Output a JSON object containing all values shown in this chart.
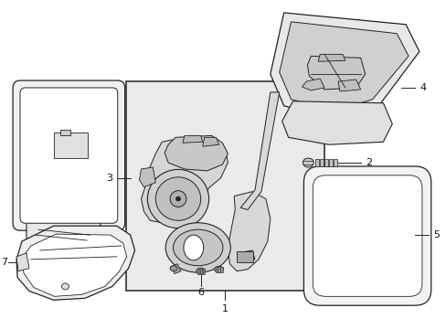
{
  "background_color": "#ffffff",
  "fig_width": 4.89,
  "fig_height": 3.6,
  "dpi": 100,
  "label_font_size": 8,
  "label_color": "#111111",
  "line_color": "#222222",
  "box_fill": "#e8eaec",
  "box_border": "#333333"
}
